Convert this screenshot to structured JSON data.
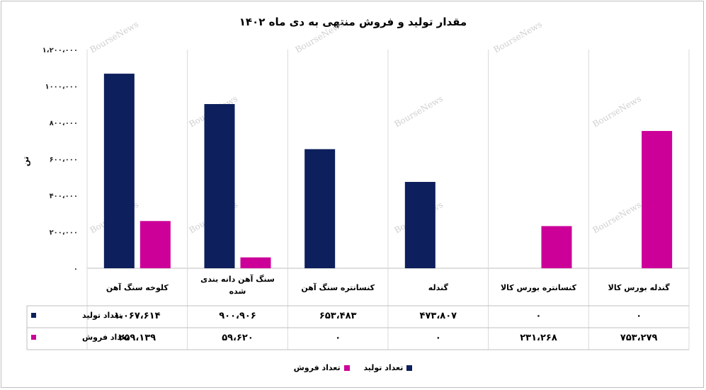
{
  "chart_data": {
    "type": "bar",
    "title": "مقدار تولید و فروش منتهی به دی ماه ۱۴۰۲",
    "ylabel": "تن",
    "ylim": [
      0,
      1200000
    ],
    "y_ticks": [
      "۰",
      "۲۰۰،۰۰۰",
      "۴۰۰،۰۰۰",
      "۶۰۰،۰۰۰",
      "۸۰۰،۰۰۰",
      "۱۰۰۰،۰۰۰",
      "۱،۲۰۰،۰۰۰"
    ],
    "categories": [
      [
        "کلوخه سنگ آهن"
      ],
      [
        "سنگ آهن دانه بندی",
        "شده"
      ],
      [
        "کنسانتره سنگ آهن"
      ],
      [
        "گندله"
      ],
      [
        "کنسانتره بورس کالا"
      ],
      [
        "گندله بورس کالا"
      ]
    ],
    "series": [
      {
        "name": "تعداد تولید",
        "color": "#0d1f5c",
        "values": [
          1067614,
          900906,
          653483,
          473807,
          0,
          0
        ],
        "labels": [
          "۱،۰۶۷،۶۱۴",
          "۹۰۰،۹۰۶",
          "۶۵۳،۴۸۳",
          "۴۷۳،۸۰۷",
          "۰",
          "۰"
        ]
      },
      {
        "name": "تعداد فروش",
        "color": "#cc0099",
        "values": [
          259139,
          59620,
          0,
          0,
          231268,
          753279
        ],
        "labels": [
          "۲۵۹،۱۳۹",
          "۵۹،۶۲۰",
          "۰",
          "۰",
          "۲۳۱،۲۶۸",
          "۷۵۳،۲۷۹"
        ]
      }
    ],
    "legend": "bottom",
    "data_table": true,
    "grid": "vertical-category-separators"
  },
  "watermark": "BourseNews"
}
